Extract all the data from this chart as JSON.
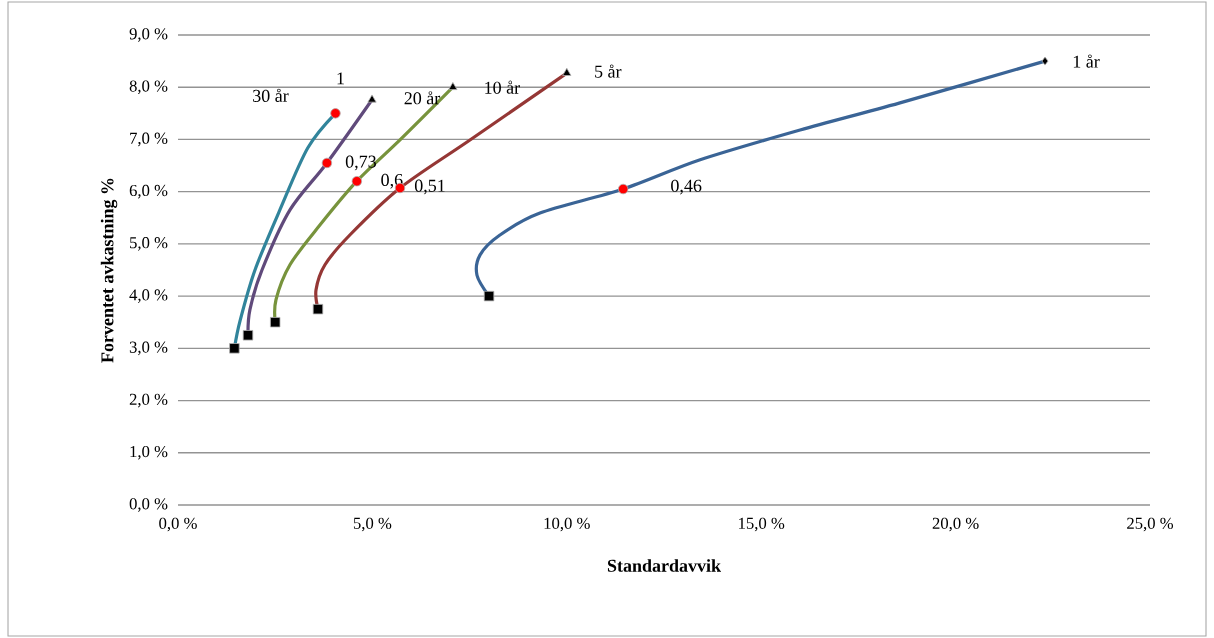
{
  "chart_data": {
    "type": "line",
    "xlabel": "Standardavvik",
    "ylabel": "Forventet avkastning %",
    "xlim": [
      0,
      25
    ],
    "ylim": [
      0,
      9
    ],
    "xticks": [
      {
        "value": 0,
        "label": "0,0 %"
      },
      {
        "value": 5,
        "label": "5,0 %"
      },
      {
        "value": 10,
        "label": "10,0 %"
      },
      {
        "value": 15,
        "label": "15,0 %"
      },
      {
        "value": 20,
        "label": "20,0 %"
      },
      {
        "value": 25,
        "label": "25,0 %"
      }
    ],
    "yticks": [
      {
        "value": 0,
        "label": "0,0 %"
      },
      {
        "value": 1,
        "label": "1,0 %"
      },
      {
        "value": 2,
        "label": "2,0 %"
      },
      {
        "value": 3,
        "label": "3,0 %"
      },
      {
        "value": 4,
        "label": "4,0 %"
      },
      {
        "value": 5,
        "label": "5,0 %"
      },
      {
        "value": 6,
        "label": "6,0 %"
      },
      {
        "value": 7,
        "label": "7,0 %"
      },
      {
        "value": 8,
        "label": "8,0 %"
      },
      {
        "value": 9,
        "label": "9,0 %"
      }
    ],
    "grid": "y",
    "series": [
      {
        "color": "#3a6496",
        "x": [
          8.0,
          7.69,
          7.77,
          8.28,
          9.31,
          11.45,
          13.43,
          16.0,
          18.57,
          22.3
        ],
        "values": [
          4.0,
          4.4,
          4.79,
          5.17,
          5.59,
          6.05,
          6.61,
          7.18,
          7.7,
          8.5
        ]
      },
      {
        "color": "#953735",
        "x": [
          3.6,
          3.55,
          3.78,
          4.42,
          5.71,
          7.51,
          10.0
        ],
        "values": [
          3.75,
          4.12,
          4.6,
          5.17,
          6.07,
          6.99,
          8.27
        ]
      },
      {
        "color": "#77933c",
        "x": [
          2.5,
          2.52,
          2.88,
          3.65,
          4.6,
          5.71,
          7.07
        ],
        "values": [
          3.5,
          3.93,
          4.6,
          5.36,
          6.2,
          6.99,
          8.0
        ]
      },
      {
        "color": "#604a7b",
        "x": [
          1.8,
          1.85,
          2.16,
          2.88,
          3.83,
          4.99
        ],
        "values": [
          3.25,
          3.74,
          4.5,
          5.65,
          6.55,
          7.76
        ]
      },
      {
        "color": "#31849b",
        "x": [
          1.45,
          1.6,
          1.98,
          2.62,
          3.34,
          4.05
        ],
        "values": [
          3.0,
          3.54,
          4.5,
          5.65,
          6.84,
          7.5
        ]
      },
      {
        "type": "scatter",
        "marker": "square",
        "color": "#000000",
        "x": [
          8.0,
          3.6,
          2.5,
          1.8,
          1.45
        ],
        "values": [
          4.0,
          3.75,
          3.5,
          3.25,
          3.0
        ]
      },
      {
        "type": "scatter",
        "marker": "triangle",
        "color": "#000000",
        "x": [
          10.0,
          7.07,
          4.99
        ],
        "values": [
          8.27,
          8.0,
          7.76
        ]
      },
      {
        "type": "scatter",
        "marker": "diamond",
        "color": "#000000",
        "x": [
          22.3
        ],
        "values": [
          8.5
        ]
      },
      {
        "type": "scatter",
        "marker": "circle",
        "color": "#ff0000",
        "x": [
          11.45,
          5.71,
          4.6,
          3.83,
          4.05
        ],
        "values": [
          6.05,
          6.07,
          6.2,
          6.55,
          7.5
        ]
      }
    ],
    "annotations": [
      {
        "text": "30 år",
        "x": 4.05,
        "y": 7.5
      },
      {
        "text": "1",
        "x": 4.05,
        "y": 7.5
      },
      {
        "text": "20 år",
        "x": 4.99,
        "y": 7.76
      },
      {
        "text": "10 år",
        "x": 7.07,
        "y": 8.0
      },
      {
        "text": "5 år",
        "x": 10.0,
        "y": 8.27
      },
      {
        "text": "1 år",
        "x": 22.3,
        "y": 8.5
      },
      {
        "text": "0,73",
        "x": 3.83,
        "y": 6.55
      },
      {
        "text": "0,6",
        "x": 4.6,
        "y": 6.2
      },
      {
        "text": "0,51",
        "x": 5.71,
        "y": 6.07
      },
      {
        "text": "0,46",
        "x": 11.45,
        "y": 6.05
      }
    ]
  }
}
